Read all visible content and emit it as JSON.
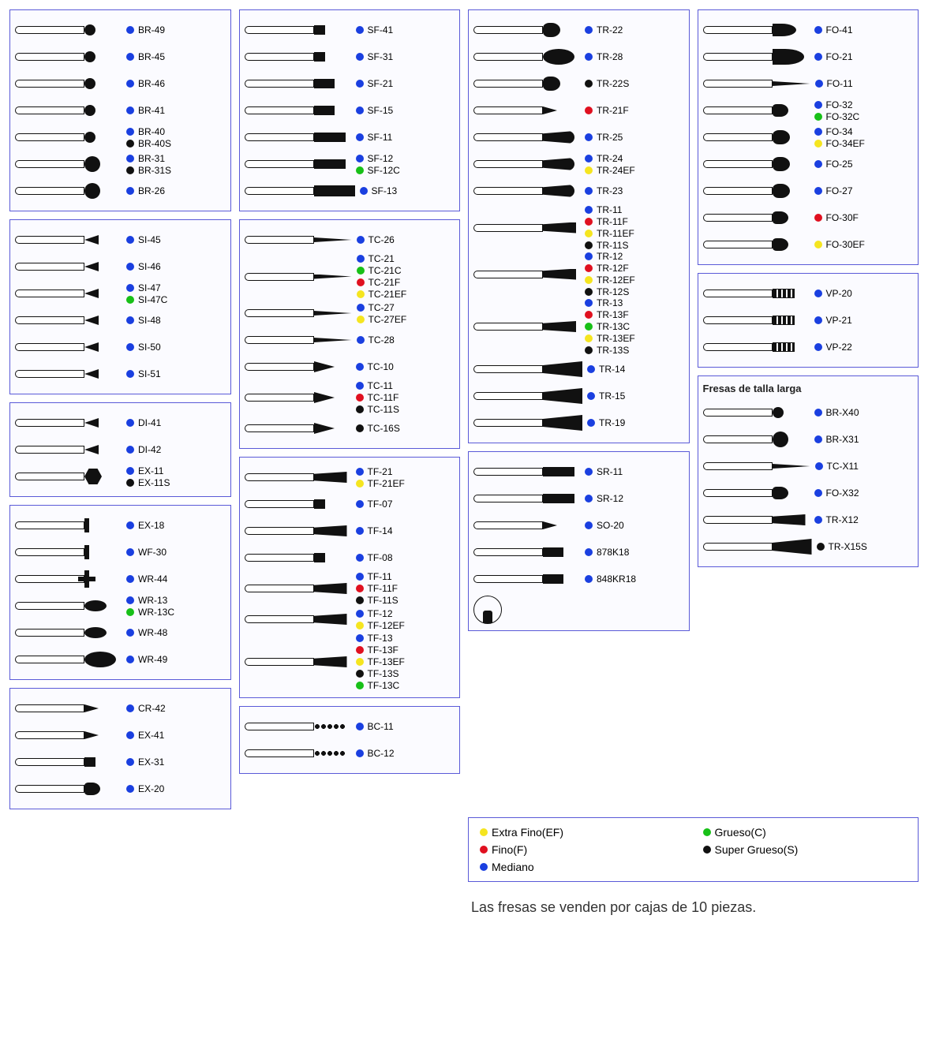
{
  "colors": {
    "blue": "#1a3fe0",
    "red": "#e01020",
    "green": "#18c018",
    "yellow": "#f5e520",
    "black": "#111111"
  },
  "legend": [
    {
      "c": "yellow",
      "text": "Extra Fino(EF)"
    },
    {
      "c": "green",
      "text": "Grueso(C)"
    },
    {
      "c": "red",
      "text": "Fino(F)"
    },
    {
      "c": "black",
      "text": "Super Grueso(S)"
    },
    {
      "c": "blue",
      "text": "Mediano"
    }
  ],
  "footer": "Las fresas se venden por cajas de 10 piezas.",
  "long_title": "Fresas de talla larga",
  "panels": {
    "BR": [
      {
        "shape": "ball",
        "labels": [
          {
            "c": "blue",
            "t": "BR-49"
          }
        ]
      },
      {
        "shape": "ball",
        "labels": [
          {
            "c": "blue",
            "t": "BR-45"
          }
        ]
      },
      {
        "shape": "ball",
        "labels": [
          {
            "c": "blue",
            "t": "BR-46"
          }
        ]
      },
      {
        "shape": "ball",
        "labels": [
          {
            "c": "blue",
            "t": "BR-41"
          }
        ]
      },
      {
        "shape": "ball",
        "labels": [
          {
            "c": "blue",
            "t": "BR-40"
          },
          {
            "c": "black",
            "t": "BR-40S"
          }
        ]
      },
      {
        "shape": "ball-lg",
        "labels": [
          {
            "c": "blue",
            "t": "BR-31"
          },
          {
            "c": "black",
            "t": "BR-31S"
          }
        ]
      },
      {
        "shape": "ball-lg",
        "labels": [
          {
            "c": "blue",
            "t": "BR-26"
          }
        ]
      }
    ],
    "SI": [
      {
        "shape": "inv-cone",
        "labels": [
          {
            "c": "blue",
            "t": "SI-45"
          }
        ]
      },
      {
        "shape": "inv-cone",
        "labels": [
          {
            "c": "blue",
            "t": "SI-46"
          }
        ]
      },
      {
        "shape": "inv-cone",
        "labels": [
          {
            "c": "blue",
            "t": "SI-47"
          },
          {
            "c": "green",
            "t": "SI-47C"
          }
        ]
      },
      {
        "shape": "inv-cone",
        "labels": [
          {
            "c": "blue",
            "t": "SI-48"
          }
        ]
      },
      {
        "shape": "inv-cone",
        "labels": [
          {
            "c": "blue",
            "t": "SI-50"
          }
        ]
      },
      {
        "shape": "inv-cone",
        "labels": [
          {
            "c": "blue",
            "t": "SI-51"
          }
        ]
      }
    ],
    "DI_EX": [
      {
        "shape": "inv-cone",
        "labels": [
          {
            "c": "blue",
            "t": "DI-41"
          }
        ]
      },
      {
        "shape": "inv-cone",
        "labels": [
          {
            "c": "blue",
            "t": "DI-42"
          }
        ]
      },
      {
        "shape": "hex",
        "labels": [
          {
            "c": "blue",
            "t": "EX-11"
          },
          {
            "c": "black",
            "t": "EX-11S"
          }
        ]
      }
    ],
    "W": [
      {
        "shape": "disc",
        "labels": [
          {
            "c": "blue",
            "t": "EX-18"
          }
        ]
      },
      {
        "shape": "disc",
        "labels": [
          {
            "c": "blue",
            "t": "WF-30"
          }
        ]
      },
      {
        "shape": "tee",
        "labels": [
          {
            "c": "blue",
            "t": "WR-44"
          }
        ]
      },
      {
        "shape": "lens",
        "labels": [
          {
            "c": "blue",
            "t": "WR-13"
          },
          {
            "c": "green",
            "t": "WR-13C"
          }
        ]
      },
      {
        "shape": "lens",
        "labels": [
          {
            "c": "blue",
            "t": "WR-48"
          }
        ]
      },
      {
        "shape": "lens-lg",
        "labels": [
          {
            "c": "blue",
            "t": "WR-49"
          }
        ]
      }
    ],
    "CR": [
      {
        "shape": "cone-s",
        "labels": [
          {
            "c": "blue",
            "t": "CR-42"
          }
        ]
      },
      {
        "shape": "cone-s",
        "labels": [
          {
            "c": "blue",
            "t": "EX-41"
          }
        ]
      },
      {
        "shape": "cyl-s",
        "labels": [
          {
            "c": "blue",
            "t": "EX-31"
          }
        ]
      },
      {
        "shape": "pear",
        "labels": [
          {
            "c": "blue",
            "t": "EX-20"
          }
        ]
      }
    ],
    "SF": [
      {
        "shape": "cyl-s",
        "labels": [
          {
            "c": "blue",
            "t": "SF-41"
          }
        ]
      },
      {
        "shape": "cyl-s",
        "labels": [
          {
            "c": "blue",
            "t": "SF-31"
          }
        ]
      },
      {
        "shape": "cyl",
        "labels": [
          {
            "c": "blue",
            "t": "SF-21"
          }
        ]
      },
      {
        "shape": "cyl",
        "labels": [
          {
            "c": "blue",
            "t": "SF-15"
          }
        ]
      },
      {
        "shape": "cyl-l",
        "labels": [
          {
            "c": "blue",
            "t": "SF-11"
          }
        ]
      },
      {
        "shape": "cyl-l",
        "labels": [
          {
            "c": "blue",
            "t": "SF-12"
          },
          {
            "c": "green",
            "t": "SF-12C"
          }
        ]
      },
      {
        "shape": "cyl-xl",
        "labels": [
          {
            "c": "blue",
            "t": "SF-13"
          }
        ]
      }
    ],
    "TC": [
      {
        "shape": "needle",
        "labels": [
          {
            "c": "blue",
            "t": "TC-26"
          }
        ]
      },
      {
        "shape": "needle",
        "labels": [
          {
            "c": "blue",
            "t": "TC-21"
          },
          {
            "c": "green",
            "t": "TC-21C"
          },
          {
            "c": "red",
            "t": "TC-21F"
          },
          {
            "c": "yellow",
            "t": "TC-21EF"
          }
        ]
      },
      {
        "shape": "needle",
        "labels": [
          {
            "c": "blue",
            "t": "TC-27"
          },
          {
            "c": "yellow",
            "t": "TC-27EF"
          }
        ]
      },
      {
        "shape": "needle",
        "labels": [
          {
            "c": "blue",
            "t": "TC-28"
          }
        ]
      },
      {
        "shape": "cone",
        "labels": [
          {
            "c": "blue",
            "t": "TC-10"
          }
        ]
      },
      {
        "shape": "cone",
        "labels": [
          {
            "c": "blue",
            "t": "TC-11"
          },
          {
            "c": "red",
            "t": "TC-11F"
          },
          {
            "c": "black",
            "t": "TC-11S"
          }
        ]
      },
      {
        "shape": "cone",
        "labels": [
          {
            "c": "black",
            "t": "TC-16S"
          }
        ]
      }
    ],
    "TF": [
      {
        "shape": "taper",
        "labels": [
          {
            "c": "blue",
            "t": "TF-21"
          },
          {
            "c": "yellow",
            "t": "TF-21EF"
          }
        ]
      },
      {
        "shape": "cyl-s",
        "labels": [
          {
            "c": "blue",
            "t": "TF-07"
          }
        ]
      },
      {
        "shape": "taper",
        "labels": [
          {
            "c": "blue",
            "t": "TF-14"
          }
        ]
      },
      {
        "shape": "cyl-s",
        "labels": [
          {
            "c": "blue",
            "t": "TF-08"
          }
        ]
      },
      {
        "shape": "taper",
        "labels": [
          {
            "c": "blue",
            "t": "TF-11"
          },
          {
            "c": "red",
            "t": "TF-11F"
          },
          {
            "c": "black",
            "t": "TF-11S"
          }
        ]
      },
      {
        "shape": "taper",
        "labels": [
          {
            "c": "blue",
            "t": "TF-12"
          },
          {
            "c": "yellow",
            "t": "TF-12EF"
          }
        ]
      },
      {
        "shape": "taper",
        "labels": [
          {
            "c": "blue",
            "t": "TF-13"
          },
          {
            "c": "red",
            "t": "TF-13F"
          },
          {
            "c": "yellow",
            "t": "TF-13EF"
          },
          {
            "c": "black",
            "t": "TF-13S"
          },
          {
            "c": "green",
            "t": "TF-13C"
          }
        ]
      }
    ],
    "BC": [
      {
        "shape": "beads",
        "labels": [
          {
            "c": "blue",
            "t": "BC-11"
          }
        ]
      },
      {
        "shape": "beads",
        "labels": [
          {
            "c": "blue",
            "t": "BC-12"
          }
        ]
      }
    ],
    "TR": [
      {
        "shape": "egg",
        "labels": [
          {
            "c": "blue",
            "t": "TR-22"
          }
        ]
      },
      {
        "shape": "lens-lg",
        "labels": [
          {
            "c": "blue",
            "t": "TR-28"
          }
        ]
      },
      {
        "shape": "egg",
        "labels": [
          {
            "c": "black",
            "t": "TR-22S"
          }
        ]
      },
      {
        "shape": "cone-s",
        "labels": [
          {
            "c": "red",
            "t": "TR-21F"
          }
        ]
      },
      {
        "shape": "round-taper",
        "labels": [
          {
            "c": "blue",
            "t": "TR-25"
          }
        ]
      },
      {
        "shape": "round-taper",
        "labels": [
          {
            "c": "blue",
            "t": "TR-24"
          },
          {
            "c": "yellow",
            "t": "TR-24EF"
          }
        ]
      },
      {
        "shape": "round-taper",
        "labels": [
          {
            "c": "blue",
            "t": "TR-23"
          }
        ]
      },
      {
        "shape": "taper",
        "labels": [
          {
            "c": "blue",
            "t": "TR-11"
          },
          {
            "c": "red",
            "t": "TR-11F"
          },
          {
            "c": "yellow",
            "t": "TR-11EF"
          },
          {
            "c": "black",
            "t": "TR-11S"
          }
        ]
      },
      {
        "shape": "taper",
        "labels": [
          {
            "c": "blue",
            "t": "TR-12"
          },
          {
            "c": "red",
            "t": "TR-12F"
          },
          {
            "c": "yellow",
            "t": "TR-12EF"
          },
          {
            "c": "black",
            "t": "TR-12S"
          }
        ]
      },
      {
        "shape": "taper",
        "labels": [
          {
            "c": "blue",
            "t": "TR-13"
          },
          {
            "c": "red",
            "t": "TR-13F"
          },
          {
            "c": "green",
            "t": "TR-13C"
          },
          {
            "c": "yellow",
            "t": "TR-13EF"
          },
          {
            "c": "black",
            "t": "TR-13S"
          }
        ]
      },
      {
        "shape": "taper-wide",
        "labels": [
          {
            "c": "blue",
            "t": "TR-14"
          }
        ]
      },
      {
        "shape": "taper-wide",
        "labels": [
          {
            "c": "blue",
            "t": "TR-15"
          }
        ]
      },
      {
        "shape": "taper-wide",
        "labels": [
          {
            "c": "blue",
            "t": "TR-19"
          }
        ]
      }
    ],
    "SR": [
      {
        "shape": "cyl-l",
        "labels": [
          {
            "c": "blue",
            "t": "SR-11"
          }
        ]
      },
      {
        "shape": "cyl-l",
        "labels": [
          {
            "c": "blue",
            "t": "SR-12"
          }
        ]
      },
      {
        "shape": "cone-s",
        "labels": [
          {
            "c": "blue",
            "t": "SO-20"
          }
        ]
      },
      {
        "shape": "cyl",
        "labels": [
          {
            "c": "blue",
            "t": "878K18"
          }
        ]
      },
      {
        "shape": "cyl",
        "labels": [
          {
            "c": "blue",
            "t": "848KR18"
          }
        ]
      }
    ],
    "FO": [
      {
        "shape": "flame",
        "labels": [
          {
            "c": "blue",
            "t": "FO-41"
          }
        ]
      },
      {
        "shape": "flame-lg",
        "labels": [
          {
            "c": "blue",
            "t": "FO-21"
          }
        ]
      },
      {
        "shape": "needle",
        "labels": [
          {
            "c": "blue",
            "t": "FO-11"
          }
        ]
      },
      {
        "shape": "pear",
        "labels": [
          {
            "c": "blue",
            "t": "FO-32"
          },
          {
            "c": "green",
            "t": "FO-32C"
          }
        ]
      },
      {
        "shape": "egg",
        "labels": [
          {
            "c": "blue",
            "t": "FO-34"
          },
          {
            "c": "yellow",
            "t": "FO-34EF"
          }
        ]
      },
      {
        "shape": "egg",
        "labels": [
          {
            "c": "blue",
            "t": "FO-25"
          }
        ]
      },
      {
        "shape": "egg",
        "labels": [
          {
            "c": "blue",
            "t": "FO-27"
          }
        ]
      },
      {
        "shape": "pear",
        "labels": [
          {
            "c": "red",
            "t": "FO-30F"
          }
        ]
      },
      {
        "shape": "pear",
        "labels": [
          {
            "c": "yellow",
            "t": "FO-30EF"
          }
        ]
      }
    ],
    "VP": [
      {
        "shape": "dumbbell",
        "labels": [
          {
            "c": "blue",
            "t": "VP-20"
          }
        ]
      },
      {
        "shape": "dumbbell",
        "labels": [
          {
            "c": "blue",
            "t": "VP-21"
          }
        ]
      },
      {
        "shape": "dumbbell",
        "labels": [
          {
            "c": "blue",
            "t": "VP-22"
          }
        ]
      }
    ],
    "X": [
      {
        "shape": "ball",
        "labels": [
          {
            "c": "blue",
            "t": "BR-X40"
          }
        ]
      },
      {
        "shape": "ball-lg",
        "labels": [
          {
            "c": "blue",
            "t": "BR-X31"
          }
        ]
      },
      {
        "shape": "needle",
        "labels": [
          {
            "c": "blue",
            "t": "TC-X11"
          }
        ]
      },
      {
        "shape": "pear",
        "labels": [
          {
            "c": "blue",
            "t": "FO-X32"
          }
        ]
      },
      {
        "shape": "taper",
        "labels": [
          {
            "c": "blue",
            "t": "TR-X12"
          }
        ]
      },
      {
        "shape": "taper-wide",
        "labels": [
          {
            "c": "black",
            "t": "TR-X15S"
          }
        ]
      }
    ]
  }
}
